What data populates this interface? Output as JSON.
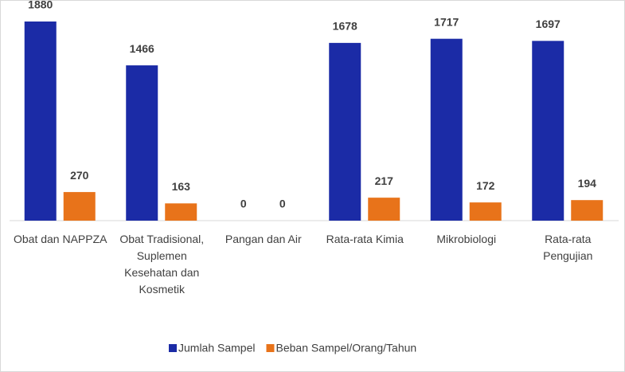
{
  "chart_data": {
    "type": "bar",
    "categories": [
      "Obat dan NAPPZA",
      "Obat Tradisional, Suplemen Kesehatan dan Kosmetik",
      "Pangan dan Air",
      "Rata-rata Kimia",
      "Mikrobiologi",
      "Rata-rata Pengujian"
    ],
    "series": [
      {
        "name": "Jumlah Sampel",
        "color": "#1b2ba6",
        "values": [
          1880,
          1466,
          0,
          1678,
          1717,
          1697
        ]
      },
      {
        "name": "Beban Sampel/Orang/Tahun",
        "color": "#e8731a",
        "values": [
          270,
          163,
          0,
          217,
          172,
          194
        ]
      }
    ],
    "legend": "bottom"
  }
}
